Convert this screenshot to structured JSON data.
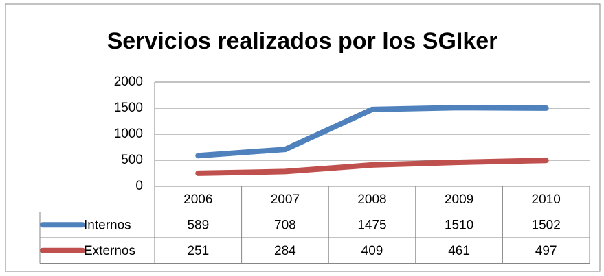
{
  "chart_data": {
    "type": "line",
    "title": "Servicios realizados por los SGIker",
    "categories": [
      "2006",
      "2007",
      "2008",
      "2009",
      "2010"
    ],
    "series": [
      {
        "name": "Internos",
        "color": "#4f81bd",
        "values": [
          589,
          708,
          1475,
          1510,
          1502
        ]
      },
      {
        "name": "Externos",
        "color": "#c0504d",
        "values": [
          251,
          284,
          409,
          461,
          497
        ]
      }
    ],
    "ylim": [
      0,
      2000
    ],
    "yticks": [
      0,
      500,
      1000,
      1500,
      2000
    ],
    "grid": true,
    "data_table": true
  }
}
